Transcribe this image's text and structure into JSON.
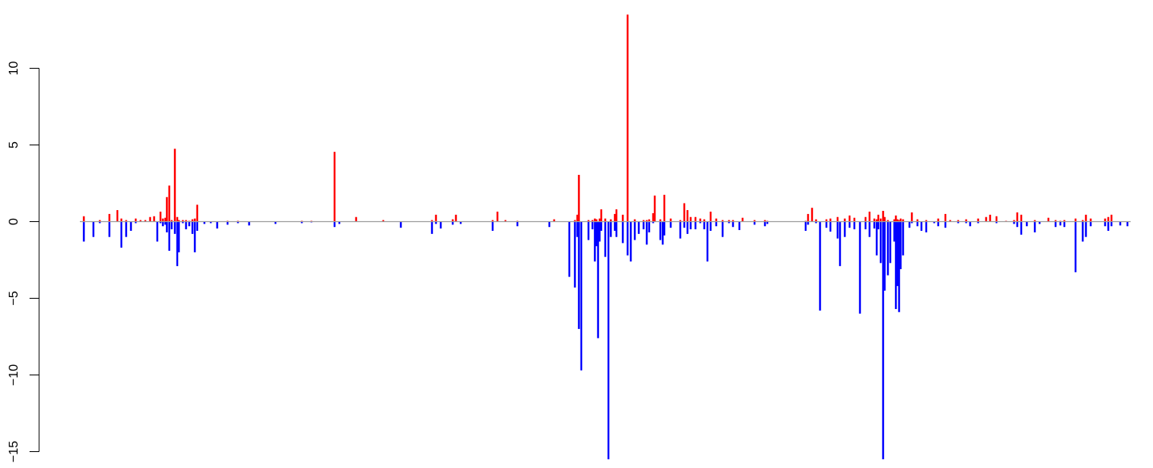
{
  "chart_data": {
    "type": "bar",
    "title": "",
    "xlabel": "",
    "ylabel": "",
    "ylim": [
      -15.3,
      13.5
    ],
    "yticks": [
      {
        "value": 10,
        "label": "10"
      },
      {
        "value": 5,
        "label": "5"
      },
      {
        "value": 0,
        "label": "0"
      },
      {
        "value": -5,
        "label": "−5"
      },
      {
        "value": -10,
        "label": "−10"
      },
      {
        "value": -15,
        "label": "−15"
      }
    ],
    "grid": false,
    "legend": "none",
    "colors": {
      "positive": "#ff0000",
      "negative": "#0000ff",
      "baseline": "#9e9e9e"
    },
    "series": [
      {
        "values": [
          [
            105,
            0.35,
            -1.3
          ],
          [
            117,
            0,
            -1.0
          ],
          [
            125,
            0.1,
            -0.1
          ],
          [
            137,
            0.5,
            -1.0
          ],
          [
            147,
            0.75,
            0
          ],
          [
            152,
            0.2,
            -1.7
          ],
          [
            158,
            0.1,
            -1.0
          ],
          [
            164,
            0,
            -0.6
          ],
          [
            170,
            0.2,
            -0.1
          ],
          [
            176,
            0.1,
            0
          ],
          [
            182,
            0.1,
            0
          ],
          [
            188,
            0.3,
            0
          ],
          [
            193,
            0.35,
            0
          ],
          [
            197,
            0,
            -1.3
          ],
          [
            201,
            0.65,
            -0.1
          ],
          [
            204,
            0.2,
            -0.3
          ],
          [
            207,
            0.25,
            -0.2
          ],
          [
            209,
            1.6,
            -0.7
          ],
          [
            212,
            2.35,
            -1.9
          ],
          [
            215,
            0.1,
            -0.5
          ],
          [
            219,
            4.75,
            -0.8
          ],
          [
            222,
            0.3,
            -2.9
          ],
          [
            224,
            0.1,
            -2.0
          ],
          [
            229,
            0.1,
            -0.1
          ],
          [
            233,
            0.1,
            -0.5
          ],
          [
            237,
            0.05,
            -0.3
          ],
          [
            241,
            0.15,
            -0.8
          ],
          [
            244,
            0.2,
            -2.0
          ],
          [
            247,
            1.1,
            -0.6
          ],
          [
            256,
            0,
            -0.15
          ],
          [
            264,
            0,
            -0.1
          ],
          [
            272,
            0,
            -0.45
          ],
          [
            285,
            0.05,
            -0.2
          ],
          [
            298,
            0.05,
            -0.1
          ],
          [
            312,
            0,
            -0.25
          ],
          [
            345,
            0,
            -0.15
          ],
          [
            378,
            0.05,
            -0.1
          ],
          [
            390,
            0.05,
            -0.05
          ],
          [
            419,
            4.55,
            -0.35
          ],
          [
            425,
            0,
            -0.15
          ],
          [
            446,
            0.3,
            0
          ],
          [
            480,
            0.1,
            0
          ],
          [
            502,
            0,
            -0.4
          ],
          [
            541,
            0.1,
            -0.8
          ],
          [
            546,
            0.45,
            -0.15
          ],
          [
            552,
            0,
            -0.45
          ],
          [
            567,
            0.15,
            -0.2
          ],
          [
            571,
            0.45,
            0
          ],
          [
            577,
            0,
            -0.15
          ],
          [
            617,
            0.1,
            -0.6
          ],
          [
            623,
            0.65,
            0
          ],
          [
            633,
            0.1,
            0
          ],
          [
            648,
            0.05,
            -0.3
          ],
          [
            688,
            0,
            -0.35
          ],
          [
            694,
            0.15,
            0
          ],
          [
            713,
            0,
            -3.6
          ],
          [
            720,
            0.1,
            -4.3
          ],
          [
            723,
            0.45,
            -1.0
          ],
          [
            725,
            3.05,
            -7.0
          ],
          [
            728,
            0,
            -9.7
          ],
          [
            737,
            0.1,
            -1.2
          ],
          [
            742,
            0.1,
            -0.5
          ],
          [
            745,
            0.2,
            -2.6
          ],
          [
            747,
            0.15,
            -1.6
          ],
          [
            749,
            0,
            -7.6
          ],
          [
            751,
            0.2,
            -1.3
          ],
          [
            753,
            0.8,
            -0.6
          ],
          [
            758,
            0.2,
            -2.3
          ],
          [
            762,
            0,
            -15.5
          ],
          [
            765,
            0.15,
            -1.0
          ],
          [
            770,
            0.5,
            -0.6
          ],
          [
            772,
            0.8,
            -1.0
          ],
          [
            780,
            0.45,
            -1.4
          ],
          [
            786,
            13.5,
            -2.2
          ],
          [
            790,
            0,
            -2.6
          ],
          [
            795,
            0.15,
            -1.2
          ],
          [
            800,
            0,
            -0.8
          ],
          [
            806,
            0.1,
            -0.5
          ],
          [
            810,
            0.1,
            -1.5
          ],
          [
            813,
            0.15,
            -0.7
          ],
          [
            818,
            0.55,
            -0.1
          ],
          [
            820,
            1.7,
            0
          ],
          [
            827,
            0.15,
            -1.2
          ],
          [
            830,
            0,
            -1.5
          ],
          [
            832,
            1.75,
            -0.9
          ],
          [
            840,
            0.2,
            -0.4
          ],
          [
            852,
            0.1,
            -1.1
          ],
          [
            857,
            1.2,
            -0.4
          ],
          [
            861,
            0.75,
            -0.8
          ],
          [
            865,
            0.3,
            -0.5
          ],
          [
            871,
            0.3,
            -0.5
          ],
          [
            877,
            0.2,
            -0.1
          ],
          [
            882,
            0.15,
            -0.5
          ],
          [
            886,
            0,
            -2.6
          ],
          [
            890,
            0.65,
            -0.6
          ],
          [
            897,
            0.2,
            -0.3
          ],
          [
            905,
            0.1,
            -1.0
          ],
          [
            913,
            0.1,
            -0.1
          ],
          [
            918,
            0.1,
            -0.35
          ],
          [
            926,
            0,
            -0.55
          ],
          [
            930,
            0.25,
            0
          ],
          [
            945,
            0.1,
            -0.2
          ],
          [
            958,
            0.1,
            -0.3
          ],
          [
            961,
            0.05,
            -0.15
          ],
          [
            1009,
            0.05,
            -0.6
          ],
          [
            1012,
            0.5,
            -0.2
          ],
          [
            1017,
            0.9,
            0
          ],
          [
            1022,
            0.15,
            -0.1
          ],
          [
            1027,
            0,
            -5.8
          ],
          [
            1035,
            0.15,
            -0.4
          ],
          [
            1040,
            0.2,
            -0.65
          ],
          [
            1049,
            0.3,
            -1.1
          ],
          [
            1052,
            0,
            -2.9
          ],
          [
            1058,
            0.2,
            -1.0
          ],
          [
            1064,
            0.4,
            -0.4
          ],
          [
            1070,
            0.25,
            -0.5
          ],
          [
            1077,
            0,
            -6.0
          ],
          [
            1084,
            0.3,
            -0.5
          ],
          [
            1089,
            0.65,
            -1.0
          ],
          [
            1095,
            0.2,
            -0.45
          ],
          [
            1098,
            0.15,
            -2.2
          ],
          [
            1100,
            0.45,
            -0.5
          ],
          [
            1103,
            0.2,
            -2.7
          ],
          [
            1106,
            0.7,
            -15.5
          ],
          [
            1108,
            0.3,
            -4.5
          ],
          [
            1112,
            0.1,
            -3.5
          ],
          [
            1115,
            0,
            -2.7
          ],
          [
            1120,
            0.15,
            -1.3
          ],
          [
            1122,
            0.4,
            -5.7
          ],
          [
            1124,
            0.15,
            -4.2
          ],
          [
            1126,
            0.1,
            -5.9
          ],
          [
            1128,
            0.2,
            -3.1
          ],
          [
            1131,
            0.15,
            -2.2
          ],
          [
            1139,
            0,
            -0.4
          ],
          [
            1142,
            0.6,
            -0.1
          ],
          [
            1149,
            0.15,
            -0.3
          ],
          [
            1154,
            0,
            -0.6
          ],
          [
            1160,
            0.1,
            -0.7
          ],
          [
            1170,
            0,
            -0.1
          ],
          [
            1175,
            0.2,
            -0.3
          ],
          [
            1184,
            0.5,
            -0.4
          ],
          [
            1190,
            0.1,
            0
          ],
          [
            1200,
            0.1,
            -0.1
          ],
          [
            1210,
            0.15,
            -0.1
          ],
          [
            1215,
            0,
            -0.3
          ],
          [
            1225,
            0.2,
            -0.1
          ],
          [
            1235,
            0.3,
            0
          ],
          [
            1240,
            0.45,
            0
          ],
          [
            1248,
            0.35,
            -0.1
          ],
          [
            1260,
            0.05,
            0
          ],
          [
            1270,
            0.1,
            -0.15
          ],
          [
            1274,
            0.6,
            -0.35
          ],
          [
            1279,
            0.45,
            -0.85
          ],
          [
            1286,
            0,
            -0.3
          ],
          [
            1296,
            0.1,
            -0.7
          ],
          [
            1302,
            0,
            -0.15
          ],
          [
            1313,
            0.25,
            0
          ],
          [
            1322,
            0.1,
            -0.35
          ],
          [
            1328,
            0.05,
            -0.25
          ],
          [
            1333,
            0.1,
            -0.35
          ],
          [
            1347,
            0.2,
            -3.3
          ],
          [
            1356,
            0.1,
            -1.3
          ],
          [
            1360,
            0.45,
            -1.0
          ],
          [
            1366,
            0.2,
            -0.3
          ],
          [
            1384,
            0.2,
            -0.3
          ],
          [
            1388,
            0.3,
            -0.6
          ],
          [
            1392,
            0.45,
            -0.3
          ],
          [
            1403,
            0,
            -0.25
          ],
          [
            1412,
            0,
            -0.3
          ]
        ]
      }
    ]
  }
}
